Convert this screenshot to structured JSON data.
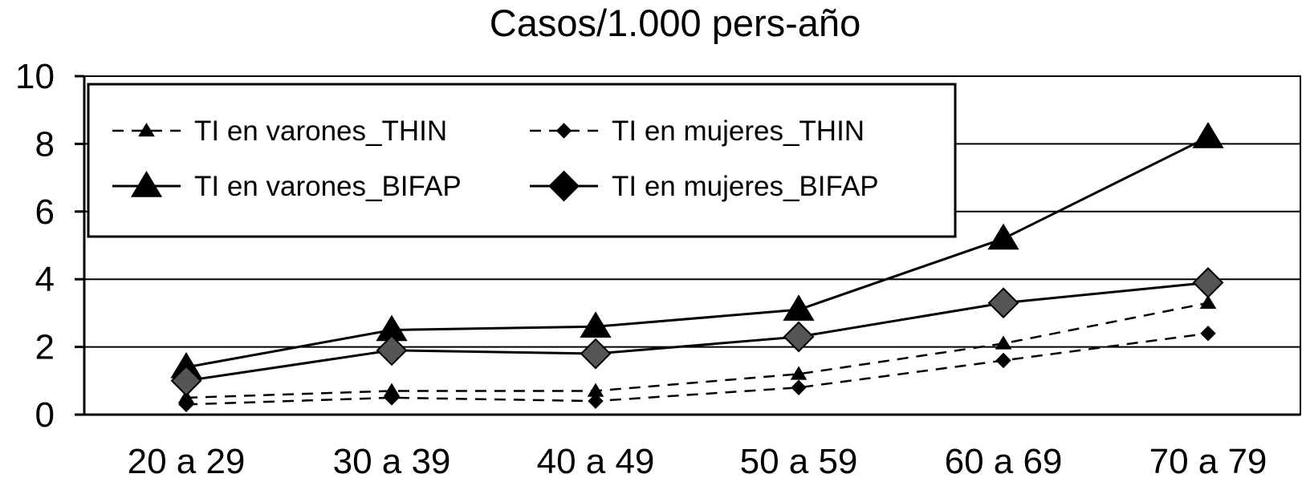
{
  "chart_data": {
    "type": "line",
    "title": "Casos/1.000 pers-año",
    "xlabel": "",
    "ylabel": "",
    "categories": [
      "20 a 29",
      "30 a 39",
      "40 a 49",
      "50 a 59",
      "60 a 69",
      "70 a 79"
    ],
    "ylim": [
      0,
      10
    ],
    "yticks": [
      "0",
      "2",
      "4",
      "6",
      "8",
      "10"
    ],
    "grid": true,
    "legend_position": "top-left",
    "series": [
      {
        "name": "TI en varones_THIN",
        "values": [
          0.5,
          0.7,
          0.7,
          1.2,
          2.1,
          3.3
        ],
        "line": "dashed",
        "marker": "triangle",
        "size": "small",
        "color": "#000000"
      },
      {
        "name": "TI en mujeres_THIN",
        "values": [
          0.3,
          0.5,
          0.4,
          0.8,
          1.6,
          2.4
        ],
        "line": "dashed",
        "marker": "diamond",
        "size": "small",
        "color": "#000000"
      },
      {
        "name": "TI en varones_BIFAP",
        "values": [
          1.4,
          2.5,
          2.6,
          3.1,
          5.2,
          8.2
        ],
        "line": "solid",
        "marker": "triangle",
        "size": "large",
        "color": "#000000"
      },
      {
        "name": "TI en mujeres_BIFAP",
        "values": [
          1.0,
          1.9,
          1.8,
          2.3,
          3.3,
          3.9
        ],
        "line": "solid",
        "marker": "diamond",
        "size": "large",
        "color": "#555555"
      }
    ]
  }
}
